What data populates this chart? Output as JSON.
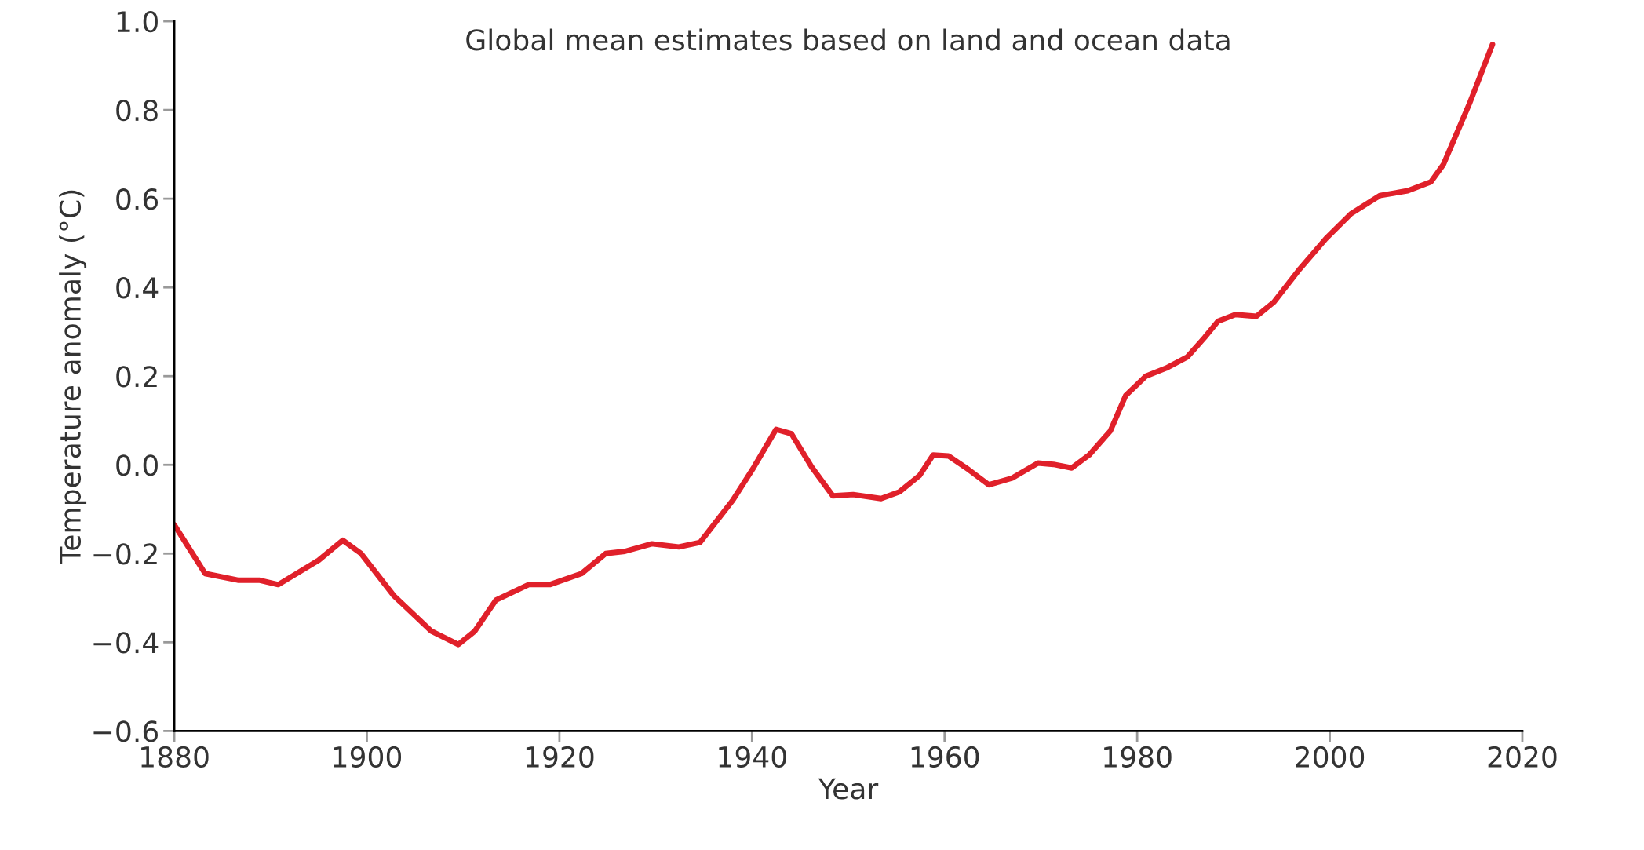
{
  "chart_data": {
    "type": "line",
    "title": "Global mean estimates based on land and ocean data",
    "xlabel": "Year",
    "ylabel": "Temperature anomaly (°C)",
    "x": [
      1880,
      1883.2,
      1886.6,
      1888.8,
      1890.8,
      1895,
      1897.5,
      1899.4,
      1902.8,
      1906.7,
      1909.5,
      1911.2,
      1913.4,
      1916.8,
      1919,
      1922.3,
      1924.8,
      1926.8,
      1929.6,
      1932.4,
      1934.6,
      1938,
      1940.2,
      1942.5,
      1944.1,
      1946.2,
      1948.4,
      1950.5,
      1953.4,
      1955.3,
      1957.4,
      1958.8,
      1960.4,
      1962.5,
      1964.6,
      1967,
      1969.7,
      1971.3,
      1973.2,
      1975,
      1977.2,
      1978.8,
      1980.9,
      1983,
      1985.2,
      1987,
      1988.4,
      1990.2,
      1992.4,
      1994.2,
      1996.9,
      1999.6,
      2002.2,
      2005.2,
      2008.1,
      2010.5,
      2011.8,
      2014.5,
      2016.9
    ],
    "series": [
      {
        "color": "#e0202a",
        "values": [
          -0.135,
          -0.245,
          -0.26,
          -0.26,
          -0.27,
          -0.215,
          -0.17,
          -0.2,
          -0.295,
          -0.375,
          -0.405,
          -0.375,
          -0.305,
          -0.27,
          -0.27,
          -0.245,
          -0.2,
          -0.195,
          -0.178,
          -0.185,
          -0.175,
          -0.08,
          -0.005,
          0.08,
          0.07,
          -0.005,
          -0.07,
          -0.067,
          -0.076,
          -0.061,
          -0.024,
          0.022,
          0.02,
          -0.011,
          -0.045,
          -0.03,
          0.004,
          0.001,
          -0.007,
          0.022,
          0.076,
          0.156,
          0.2,
          0.218,
          0.243,
          0.287,
          0.324,
          0.339,
          0.335,
          0.367,
          0.442,
          0.51,
          0.566,
          0.607,
          0.618,
          0.638,
          0.677,
          0.814,
          0.948
        ]
      }
    ],
    "xlim": [
      1880,
      2020
    ],
    "xticks": [
      1880,
      1900,
      1920,
      1940,
      1960,
      1980,
      2000,
      2020
    ],
    "ylim": [
      -0.6,
      1.0
    ],
    "yticks": [
      {
        "value": -0.6,
        "label": "−0.6"
      },
      {
        "value": -0.4,
        "label": "−0.4"
      },
      {
        "value": -0.2,
        "label": "−0.2"
      },
      {
        "value": 0.0,
        "label": "0.0"
      },
      {
        "value": 0.2,
        "label": "0.2"
      },
      {
        "value": 0.4,
        "label": "0.4"
      },
      {
        "value": 0.6,
        "label": "0.6"
      },
      {
        "value": 0.8,
        "label": "0.8"
      },
      {
        "value": 1.0,
        "label": "1.0"
      }
    ],
    "grid": false,
    "legend": false,
    "line_style": "solid",
    "marker": "none"
  }
}
